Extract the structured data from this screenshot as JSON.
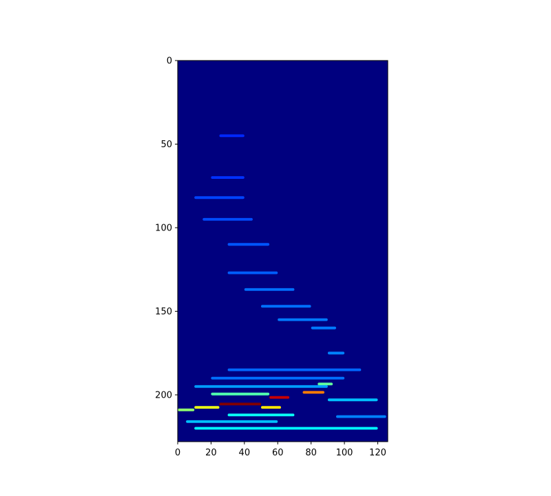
{
  "chart_data": {
    "type": "heatmap",
    "title": "",
    "xlabel": "",
    "ylabel": "",
    "colormap": "jet",
    "xlim": [
      0,
      126
    ],
    "ylim": [
      228,
      0
    ],
    "y_axis_inverted": true,
    "grid": false,
    "legend": "none",
    "x_ticks": [
      0,
      20,
      40,
      60,
      80,
      100,
      120
    ],
    "x_tick_labels": [
      "0",
      "20",
      "40",
      "60",
      "80",
      "100",
      "120"
    ],
    "y_ticks": [
      0,
      50,
      100,
      150,
      200
    ],
    "y_tick_labels": [
      "0",
      "50",
      "100",
      "150",
      "200"
    ],
    "background_value": 0.0,
    "background_color": "#00007f",
    "features": [
      {
        "x": [
          25,
          50
        ],
        "y": 205.5,
        "intensity": 1.0
      },
      {
        "x": [
          10,
          25
        ],
        "y": 207.5,
        "intensity": 0.55
      },
      {
        "x": [
          50,
          62
        ],
        "y": 207.5,
        "intensity": 0.6
      },
      {
        "x": [
          55,
          67
        ],
        "y": 201.5,
        "intensity": 0.92
      },
      {
        "x": [
          75,
          88
        ],
        "y": 198.5,
        "intensity": 0.72
      },
      {
        "x": [
          84,
          93
        ],
        "y": 193.5,
        "intensity": 0.4
      },
      {
        "x": [
          20,
          55
        ],
        "y": 199.5,
        "intensity": 0.38
      },
      {
        "x": [
          0,
          10
        ],
        "y": 209,
        "intensity": 0.45
      },
      {
        "x": [
          30,
          70
        ],
        "y": 212,
        "intensity": 0.3
      },
      {
        "x": [
          5,
          60
        ],
        "y": 216,
        "intensity": 0.22
      },
      {
        "x": [
          10,
          120
        ],
        "y": 220,
        "intensity": 0.28
      },
      {
        "x": [
          10,
          90
        ],
        "y": 195,
        "intensity": 0.18
      },
      {
        "x": [
          20,
          100
        ],
        "y": 190,
        "intensity": 0.13
      },
      {
        "x": [
          30,
          110
        ],
        "y": 185,
        "intensity": 0.12
      },
      {
        "x": [
          90,
          120
        ],
        "y": 203,
        "intensity": 0.22
      },
      {
        "x": [
          95,
          125
        ],
        "y": 213,
        "intensity": 0.15
      },
      {
        "x": [
          90,
          100
        ],
        "y": 175,
        "intensity": 0.15
      },
      {
        "x": [
          80,
          95
        ],
        "y": 160,
        "intensity": 0.14
      },
      {
        "x": [
          60,
          90
        ],
        "y": 155,
        "intensity": 0.14
      },
      {
        "x": [
          50,
          80
        ],
        "y": 147,
        "intensity": 0.13
      },
      {
        "x": [
          40,
          70
        ],
        "y": 137,
        "intensity": 0.13
      },
      {
        "x": [
          30,
          60
        ],
        "y": 127,
        "intensity": 0.11
      },
      {
        "x": [
          30,
          55
        ],
        "y": 110,
        "intensity": 0.1
      },
      {
        "x": [
          15,
          45
        ],
        "y": 95,
        "intensity": 0.09
      },
      {
        "x": [
          10,
          40
        ],
        "y": 82,
        "intensity": 0.08
      },
      {
        "x": [
          20,
          40
        ],
        "y": 70,
        "intensity": 0.06
      },
      {
        "x": [
          25,
          40
        ],
        "y": 45,
        "intensity": 0.05
      }
    ]
  }
}
